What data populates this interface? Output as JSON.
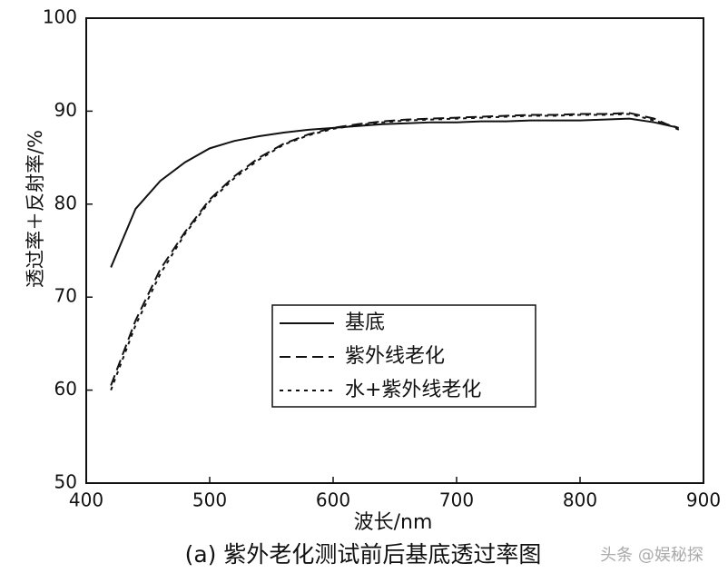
{
  "chart_data": {
    "type": "line",
    "xlabel": "波长/nm",
    "ylabel": "透过率＋反射率/%",
    "caption": "(a) 紫外老化测试前后基底透过率图",
    "watermark": "头条 @娱秘探",
    "x": [
      420,
      440,
      460,
      480,
      500,
      520,
      540,
      560,
      580,
      600,
      620,
      640,
      660,
      680,
      700,
      720,
      740,
      760,
      780,
      800,
      820,
      840,
      860,
      880
    ],
    "series": [
      {
        "name": "基底",
        "color": "#111111",
        "style": "solid",
        "values": [
          73.2,
          79.5,
          82.5,
          84.5,
          86,
          86.8,
          87.3,
          87.7,
          88,
          88.2,
          88.4,
          88.6,
          88.7,
          88.8,
          88.8,
          88.9,
          88.9,
          89,
          89,
          89,
          89.1,
          89.2,
          88.8,
          88.2
        ]
      },
      {
        "name": "紫外线老化",
        "color": "#111111",
        "style": "dashed",
        "values": [
          60.5,
          67.5,
          73,
          77,
          80.5,
          83,
          85,
          86.5,
          87.5,
          88.2,
          88.6,
          88.9,
          89.1,
          89.2,
          89.3,
          89.4,
          89.5,
          89.6,
          89.6,
          89.7,
          89.7,
          89.8,
          89.2,
          88
        ]
      },
      {
        "name": "水+紫外线老化",
        "color": "#111111",
        "style": "dotted",
        "values": [
          60,
          67,
          72.5,
          76.8,
          80.3,
          82.8,
          84.8,
          86.4,
          87.4,
          88.1,
          88.5,
          88.8,
          89,
          89.1,
          89.2,
          89.3,
          89.4,
          89.5,
          89.5,
          89.6,
          89.6,
          89.7,
          89,
          88.2
        ]
      }
    ],
    "xlim": [
      400,
      900
    ],
    "xticks": [
      400,
      500,
      600,
      700,
      800,
      900
    ],
    "ylim": [
      50,
      100
    ],
    "yticks": [
      50,
      60,
      70,
      80,
      90,
      100
    ],
    "grid": false
  }
}
